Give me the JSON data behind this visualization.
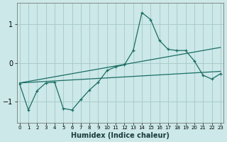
{
  "xlabel": "Humidex (Indice chaleur)",
  "bg_color": "#cce8e8",
  "grid_color": "#aacccc",
  "line_color": "#1a6e64",
  "x": [
    0,
    1,
    2,
    3,
    4,
    5,
    6,
    7,
    8,
    9,
    10,
    11,
    12,
    13,
    14,
    15,
    16,
    17,
    18,
    19,
    20,
    21,
    22,
    23
  ],
  "y_curve": [
    -0.55,
    -1.22,
    -0.72,
    -0.52,
    -0.5,
    -1.18,
    -1.22,
    -0.95,
    -0.7,
    -0.5,
    -0.2,
    -0.1,
    -0.05,
    0.32,
    1.3,
    1.12,
    0.58,
    0.35,
    0.32,
    0.32,
    0.05,
    -0.32,
    -0.42,
    -0.28
  ],
  "trend_x0": 0,
  "trend_x1": 23,
  "trend_y0": -0.52,
  "trend_y1": 0.4,
  "flat_y0": -0.52,
  "flat_y1": -0.22,
  "ylim": [
    -1.55,
    1.55
  ],
  "xlim_min": -0.3,
  "xlim_max": 23.3,
  "yticks": [
    -1,
    0,
    1
  ],
  "xticks": [
    0,
    1,
    2,
    3,
    4,
    5,
    6,
    7,
    8,
    9,
    10,
    11,
    12,
    13,
    14,
    15,
    16,
    17,
    18,
    19,
    20,
    21,
    22,
    23
  ]
}
